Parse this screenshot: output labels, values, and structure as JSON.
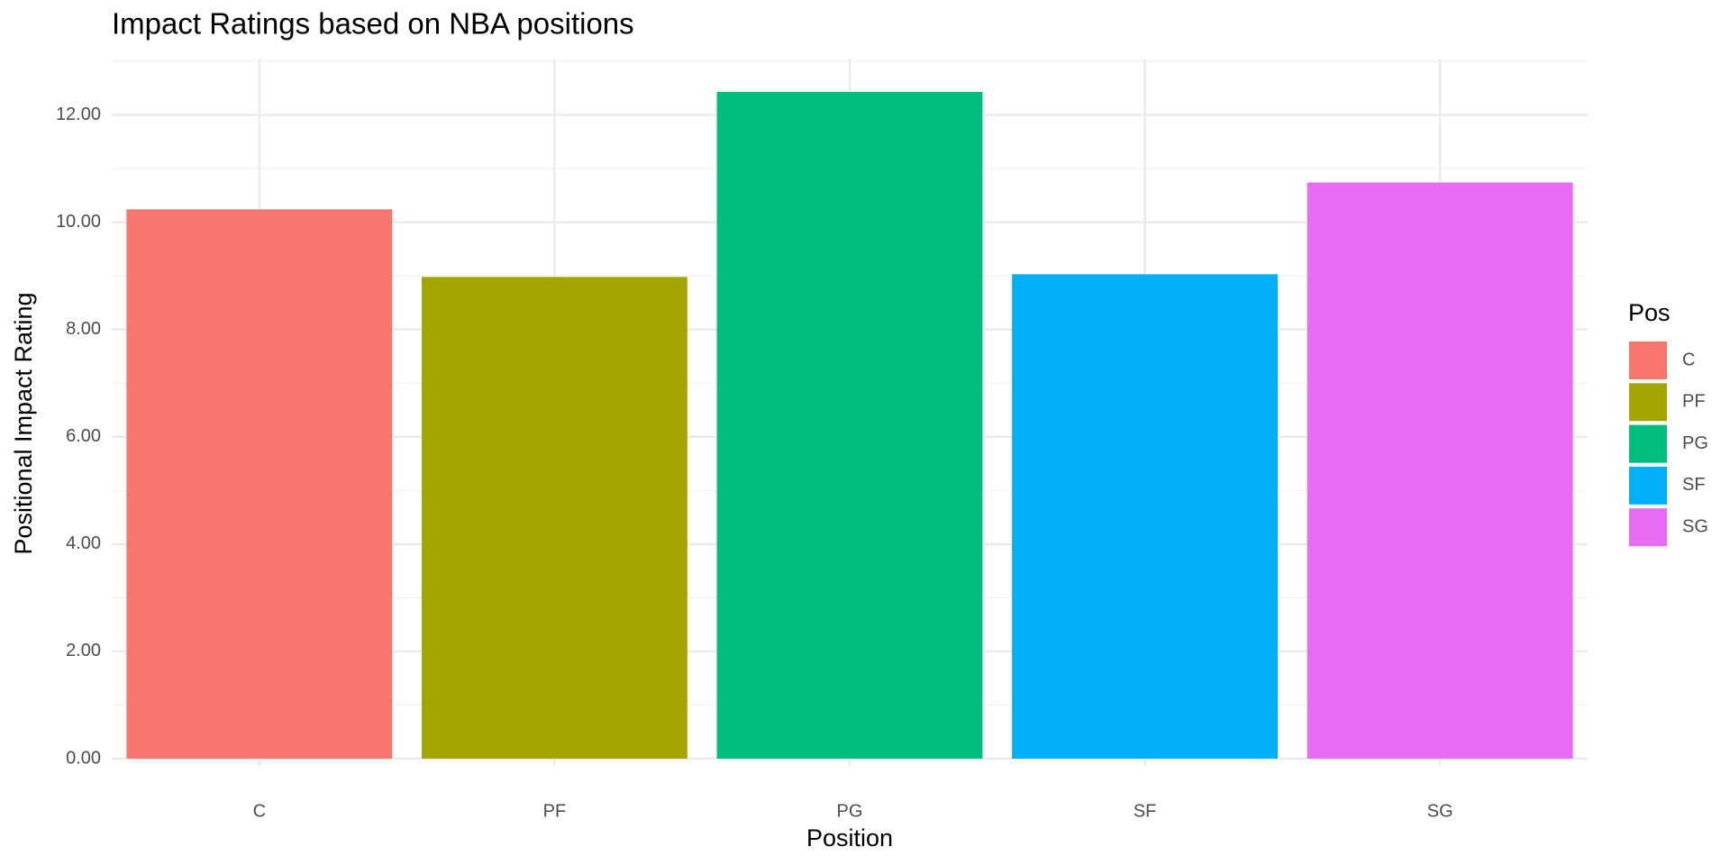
{
  "chart_data": {
    "type": "bar",
    "title": "Impact Ratings based on NBA positions",
    "x_label": "Position",
    "y_label": "Positional Impact Rating",
    "legend_title": "Pos",
    "categories": [
      "C",
      "PF",
      "PG",
      "SF",
      "SG"
    ],
    "values": [
      10.24,
      8.98,
      12.43,
      9.03,
      10.74
    ],
    "colors": [
      "#f8766d",
      "#a3a500",
      "#00bf7d",
      "#00b0f6",
      "#e76bf3"
    ],
    "ylim": [
      0,
      13.05
    ],
    "yticks": [
      {
        "value": 0,
        "label": "0.00"
      },
      {
        "value": 2,
        "label": "2.00"
      },
      {
        "value": 4,
        "label": "4.00"
      },
      {
        "value": 6,
        "label": "6.00"
      },
      {
        "value": 8,
        "label": "8.00"
      },
      {
        "value": 10,
        "label": "10.00"
      },
      {
        "value": 12,
        "label": "12.00"
      }
    ],
    "grid": true,
    "legend": "right"
  }
}
